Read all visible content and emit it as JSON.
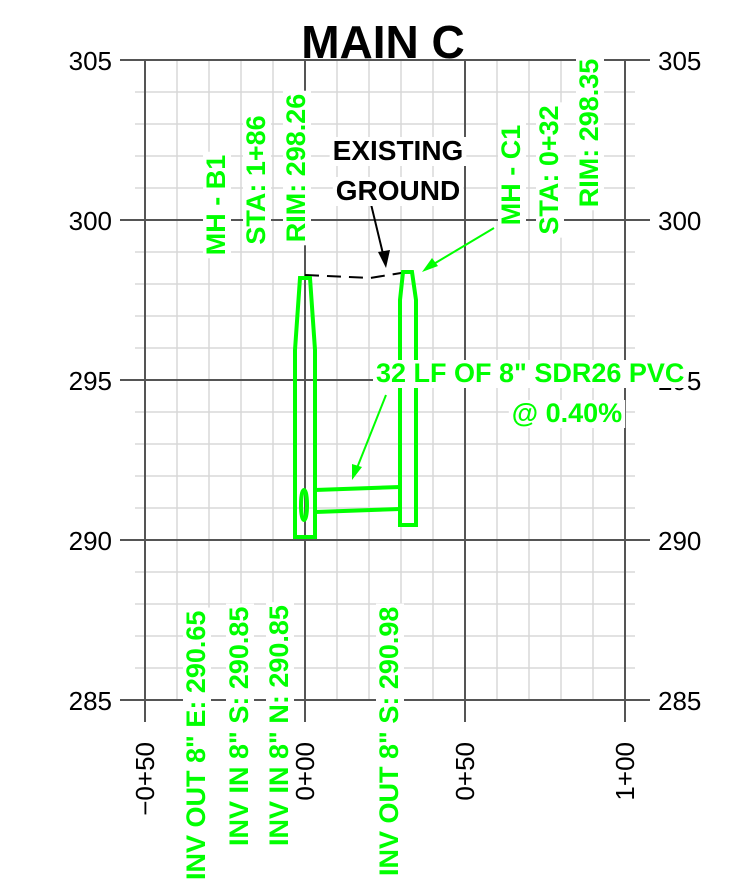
{
  "title": "MAIN C",
  "y_axis": {
    "labels": [
      "305",
      "300",
      "295",
      "290",
      "285"
    ]
  },
  "x_axis": {
    "labels": [
      "−0+50",
      "0+00",
      "0+50",
      "1+00"
    ]
  },
  "manholes": [
    {
      "name": "MH - B1",
      "station": "STA: 1+86",
      "rim": "RIM:  298.26"
    },
    {
      "name": "MH - C1",
      "station": "STA: 0+32",
      "rim": "RIM:  298.35"
    }
  ],
  "ground_label": [
    "EXISTING",
    "GROUND"
  ],
  "pipe_label": [
    "32 LF OF 8\" SDR26 PVC",
    "@ 0.40%"
  ],
  "inverts": [
    "INV OUT 8\" E:  290.65",
    "INV IN 8\" S:  290.85",
    "INV IN 8\" N:  290.85",
    "INV OUT 8\" S:  290.98"
  ]
}
